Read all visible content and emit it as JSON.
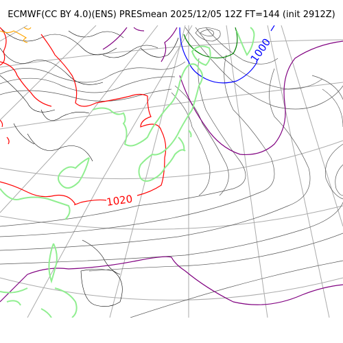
{
  "title": "ECMWF(CC BY 4.0)(ENS) PRESmean 2025/12/05 12Z FT=144 (init 2912Z)",
  "labels": {
    "low_isobar": "1000",
    "high_isobar": "1020"
  },
  "colors": {
    "isobar": "#555555",
    "isobar_1020": "#ff0000",
    "isobar_1000": "#0000ff",
    "isobar_1012": "#800080",
    "isobar_996": "#008000",
    "coastline": "#90ee90",
    "graticule": "#aaaaaa",
    "terrain": "#000000",
    "highlight_orange": "#ffa500"
  }
}
